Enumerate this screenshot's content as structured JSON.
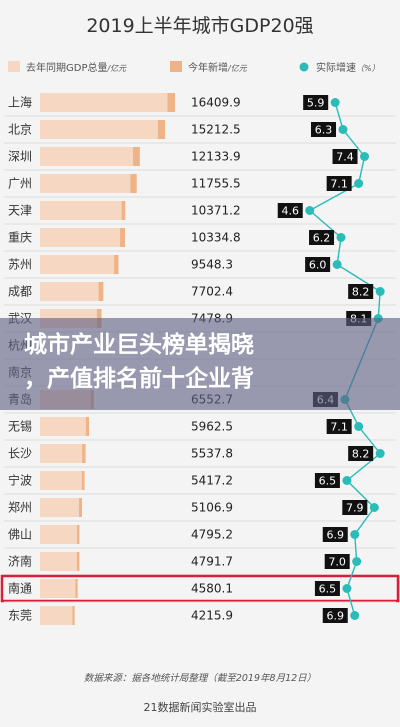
{
  "chart_data": {
    "type": "bar",
    "title": "2019上半年城市GDP20强",
    "legend": [
      {
        "label": "去年同期GDP总量",
        "unit": "/亿元",
        "color": "#f6d7c2"
      },
      {
        "label": "今年新增",
        "unit": "/亿元",
        "color": "#eeb487"
      },
      {
        "label": "实际增速",
        "unit": "（%）",
        "color": "#29bcb8"
      }
    ],
    "categories": [
      "上海",
      "北京",
      "深圳",
      "广州",
      "天津",
      "重庆",
      "苏州",
      "成都",
      "武汉",
      "杭州",
      "南京",
      "青岛",
      "无锡",
      "长沙",
      "宁波",
      "郑州",
      "佛山",
      "济南",
      "南通",
      "东莞"
    ],
    "gdp_total": [
      "16409.9",
      "15212.5",
      "12133.9",
      "11755.5",
      "10371.2",
      "10334.8",
      "9548.3",
      "7702.4",
      "7478.9",
      "",
      "",
      "6552.7",
      "5962.5",
      "5537.8",
      "5417.2",
      "5106.9",
      "4795.2",
      "4791.7",
      "4580.1",
      "4215.9"
    ],
    "growth_rate": [
      5.9,
      6.3,
      7.4,
      7.1,
      4.6,
      6.2,
      6.0,
      8.2,
      8.1,
      null,
      null,
      6.4,
      7.1,
      8.2,
      6.5,
      7.9,
      6.9,
      7.0,
      6.5,
      6.9
    ],
    "growth_rate_text": [
      "5.9",
      "6.3",
      "7.4",
      "7.1",
      "4.6",
      "6.2",
      "6.0",
      "8.2",
      "8.1",
      "",
      "",
      "6.4",
      "7.1",
      "8.2",
      "6.5",
      "7.9",
      "6.9",
      "7.0",
      "6.5",
      "6.9"
    ],
    "highlight": "南通",
    "bar_color_base": "#f6d7c2",
    "bar_color_new": "#eeb487",
    "line_color": "#29bcb8",
    "highlight_color": "#d81e3a",
    "source": "数据来源：据各地统计局整理（截至2019年8月12日）",
    "credit": "21数据新闻实验室出品"
  },
  "overlay": {
    "line1": "城市产业巨头榜单揭晓",
    "line2": "，产值排名前十企业背"
  }
}
